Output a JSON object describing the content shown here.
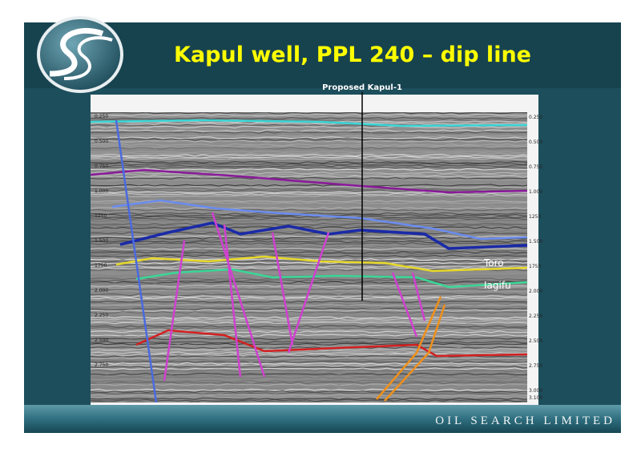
{
  "header": {
    "title": "Kapul well, PPL 240 – dip line"
  },
  "section": {
    "well_label": "Proposed Kapul-1",
    "horizon_labels": [
      "Toro",
      "Iagifu"
    ],
    "time_ticks_left": [
      "0.250",
      "0.500",
      "0.750",
      "1.000",
      "1250",
      "1.500",
      "1750",
      "2.000",
      "2.250",
      "2.500",
      "2.750"
    ],
    "time_ticks_right": [
      "0.250",
      "0.500",
      "0.750",
      "1.000",
      "1250",
      "1.500",
      "1750",
      "2.000",
      "2.250",
      "2.500",
      "2.750",
      "3.000",
      "3.100"
    ]
  },
  "footer": {
    "company": "OIL SEARCH LIMITED"
  }
}
